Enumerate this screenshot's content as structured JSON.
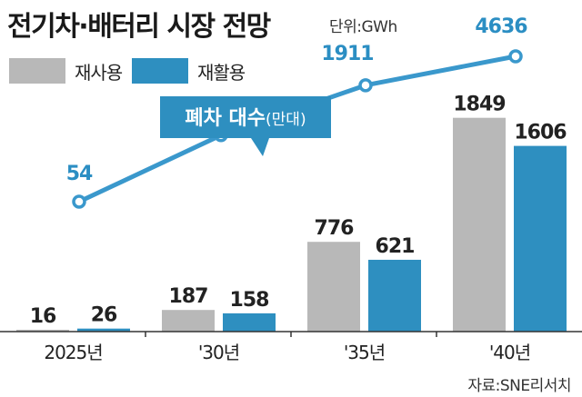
{
  "title": "전기차·배터리 시장 전망",
  "unit_label": "단위:GWh",
  "source": "자료:SNE리서치",
  "colors": {
    "reuse": "#b8b8b8",
    "recycle": "#2e8fc0",
    "line": "#3a98cc",
    "line_label": "#2b8ec3",
    "callout_bg": "#2e8fc0",
    "callout_text": "#ffffff",
    "axis": "#333333"
  },
  "chart_data": {
    "type": "bar",
    "categories": [
      "2025년",
      "'30년",
      "'35년",
      "'40년"
    ],
    "series": [
      {
        "name": "재사용",
        "values": [
          16,
          187,
          776,
          1849
        ]
      },
      {
        "name": "재활용",
        "values": [
          26,
          158,
          621,
          1606
        ]
      }
    ],
    "ylabel": "",
    "ylim": [
      0,
      2200
    ],
    "grid": false,
    "legend_position": "top-left",
    "line_series": {
      "type": "line",
      "name": "폐차 대수(만대)",
      "name_main": "폐차 대수",
      "name_unit": "(만대)",
      "values": [
        54,
        414,
        1911,
        4636
      ],
      "scale": "log"
    }
  }
}
